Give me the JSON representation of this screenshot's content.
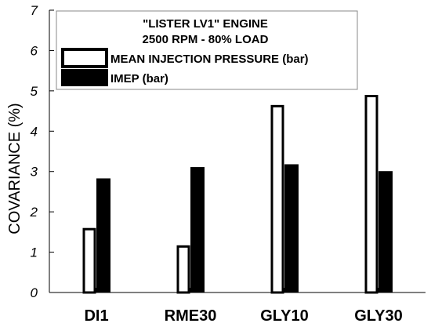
{
  "chart_data": {
    "type": "bar",
    "title_lines": [
      "\"LISTER LV1\" ENGINE",
      "2500 RPM - 80% LOAD"
    ],
    "ylabel": "COVARIANCE (%)",
    "xlabel": "",
    "ylim": [
      0,
      7
    ],
    "yticks": [
      "0",
      "1",
      "2",
      "3",
      "4",
      "5",
      "6",
      "7"
    ],
    "categories": [
      "DI1",
      "RME30",
      "GLY10",
      "GLY30"
    ],
    "series": [
      {
        "name": "MEAN INJECTION PRESSURE (bar)",
        "values": [
          1.6,
          1.17,
          4.65,
          4.9
        ],
        "fill": "#ffffff",
        "stroke": "#000000"
      },
      {
        "name": "IMEP (bar)",
        "values": [
          2.82,
          3.1,
          3.17,
          3.0
        ],
        "fill": "#000000",
        "stroke": "#000000"
      }
    ],
    "legend_position": "top-left",
    "grid": false
  }
}
